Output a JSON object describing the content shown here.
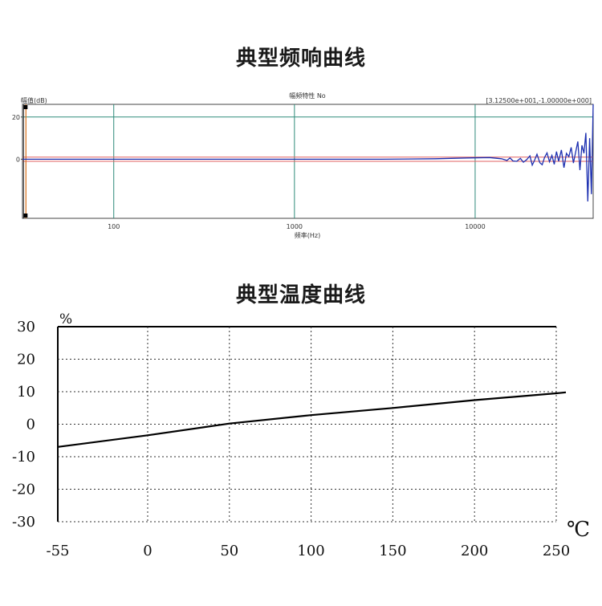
{
  "titles": {
    "frequency": "典型频响曲线",
    "temperature": "典型温度曲线"
  },
  "chart_data": [
    {
      "type": "line",
      "title": "幅频特性 No",
      "ylabel": "幅值(dB)",
      "xlabel": "频率(Hz)",
      "corner_readout": "[3.12500e+001,-1.00000e+000]",
      "x_scale": "log",
      "xlim": [
        31.25,
        45000
      ],
      "ylim": [
        -28,
        26
      ],
      "x_ticks": [
        100,
        1000,
        10000
      ],
      "x_tick_labels": [
        "100",
        "1000",
        "10000"
      ],
      "y_ticks": [
        20,
        0
      ],
      "y_tick_labels": [
        "20",
        "0"
      ],
      "grid": true,
      "reference_lines": [
        {
          "value": 20,
          "color": "#2e8b7a"
        },
        {
          "value": 1,
          "color": "#e06060"
        },
        {
          "value": -1,
          "color": "#e06060"
        }
      ],
      "marker_x": 32,
      "series": [
        {
          "color": "#1c2fb0",
          "x": [
            31.25,
            200,
            500,
            1000,
            3000,
            6000,
            9000,
            12000,
            14000,
            15000,
            15600,
            16200,
            17000,
            17800,
            18500,
            19300,
            20100,
            20700,
            21300,
            22000,
            22800,
            23500,
            24200,
            25000,
            25800,
            26600,
            27400,
            28200,
            29000,
            30000,
            31000,
            32000,
            33000,
            34000,
            35000,
            36000,
            37000,
            38000,
            39000,
            40000,
            41000,
            42000,
            43000,
            44000,
            45000
          ],
          "y": [
            0,
            0,
            0,
            0,
            0,
            0.2,
            0.6,
            0.8,
            0.2,
            -0.6,
            0.6,
            -0.8,
            -1.0,
            0.4,
            -1.4,
            -0.2,
            1.6,
            -2.8,
            -0.6,
            2.4,
            -1.6,
            -2.6,
            0.8,
            3.0,
            -1.2,
            1.8,
            -2.4,
            3.6,
            -1.0,
            4.4,
            -4.0,
            2.8,
            1.2,
            5.6,
            -1.8,
            3.4,
            8.4,
            -5.2,
            6.6,
            2.8,
            12.5,
            -20.0,
            10.0,
            -16.5,
            26.0
          ]
        }
      ]
    },
    {
      "type": "line",
      "title": "",
      "ylabel": "%",
      "xlabel": "℃",
      "x_categories": [
        "-55",
        "0",
        "50",
        "100",
        "150",
        "200",
        "250"
      ],
      "x_values": [
        -55,
        0,
        50,
        100,
        150,
        200,
        250
      ],
      "xlim": [
        -55,
        250
      ],
      "ylim": [
        -30,
        30
      ],
      "y_ticks": [
        30,
        20,
        10,
        0,
        -10,
        -20,
        -30
      ],
      "y_tick_labels": [
        "30",
        "20",
        "10",
        "0",
        "-10",
        "-20",
        "-30"
      ],
      "grid": true,
      "series": [
        {
          "color": "#000000",
          "x": [
            -55,
            0,
            50,
            100,
            150,
            200,
            250
          ],
          "y": [
            -7.0,
            -3.4,
            0.2,
            2.8,
            5.0,
            7.4,
            9.5
          ]
        }
      ]
    }
  ]
}
